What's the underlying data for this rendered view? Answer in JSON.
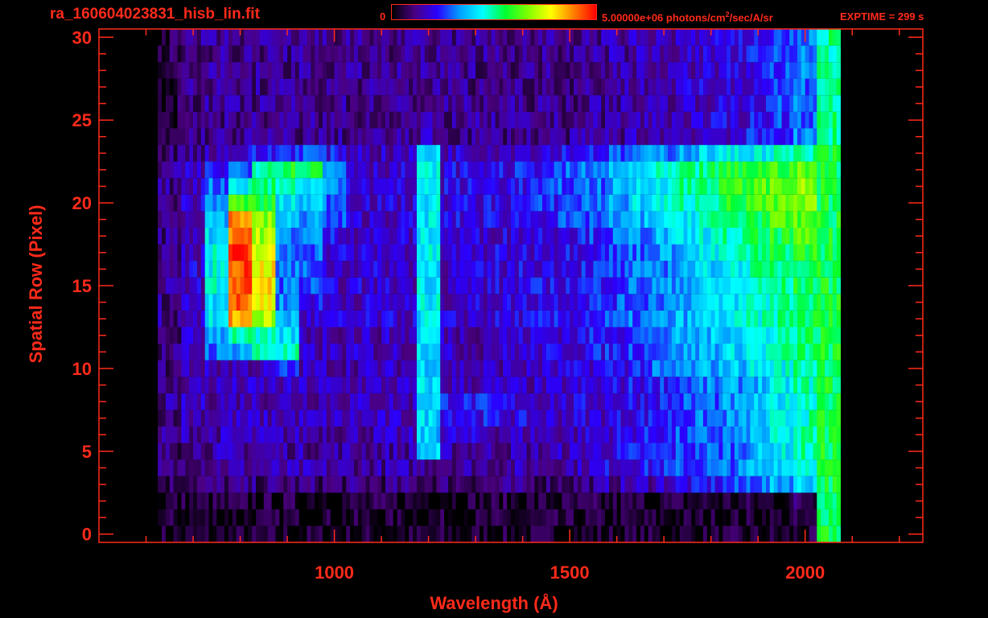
{
  "header": {
    "filename": "ra_160604023831_hisb_lin.fit",
    "colorbar_min": "0",
    "colorbar_max": "5.00000e+06",
    "colorbar_unit_pre": " photons/cm",
    "colorbar_unit_sup": "2",
    "colorbar_unit_post": "/sec/A/sr",
    "exptime": "EXPTIME = 299 s"
  },
  "colors": {
    "axis": "#ff2a1a",
    "background": "#000000",
    "colormap": [
      "#000000",
      "#4a0080",
      "#2a00ff",
      "#00a0ff",
      "#00ffff",
      "#00ff30",
      "#80ff00",
      "#ffff00",
      "#ff8000",
      "#ff0000"
    ]
  },
  "chart_data": {
    "type": "heatmap",
    "title": "ra_160604023831_hisb_lin.fit",
    "xlabel": "Wavelength (Å)",
    "ylabel": "Spatial Row (Pixel)",
    "xlim": [
      500,
      2250
    ],
    "ylim": [
      -0.5,
      30.5
    ],
    "xticks": [
      1000,
      1500,
      2000
    ],
    "yticks": [
      0,
      5,
      10,
      15,
      20,
      25,
      30
    ],
    "colorbar": {
      "min": 0,
      "max": 5000000,
      "unit": "photons/cm^2/sec/A/sr"
    },
    "exptime_s": 299,
    "rows": [
      0,
      1,
      2,
      3,
      4,
      5,
      6,
      7,
      8,
      9,
      10,
      11,
      12,
      13,
      14,
      15,
      16,
      17,
      18,
      19,
      20,
      21,
      22,
      23,
      24,
      25,
      26,
      27,
      28,
      29,
      30
    ],
    "wavelength_bins": [
      650,
      700,
      750,
      800,
      850,
      900,
      950,
      1000,
      1050,
      1100,
      1150,
      1200,
      1250,
      1300,
      1350,
      1400,
      1450,
      1500,
      1550,
      1600,
      1650,
      1700,
      1750,
      1800,
      1850,
      1900,
      1950,
      2000,
      2050
    ],
    "intensity_norm_rows": [
      [
        0.03,
        0.03,
        0.03,
        0.03,
        0.03,
        0.03,
        0.03,
        0.03,
        0.03,
        0.03,
        0.03,
        0.03,
        0.03,
        0.03,
        0.03,
        0.03,
        0.03,
        0.03,
        0.03,
        0.03,
        0.03,
        0.03,
        0.03,
        0.03,
        0.03,
        0.03,
        0.03,
        0.03,
        0.55
      ],
      [
        0.03,
        0.03,
        0.03,
        0.03,
        0.03,
        0.03,
        0.03,
        0.03,
        0.03,
        0.03,
        0.03,
        0.03,
        0.03,
        0.03,
        0.03,
        0.03,
        0.03,
        0.03,
        0.03,
        0.03,
        0.03,
        0.03,
        0.03,
        0.03,
        0.03,
        0.03,
        0.03,
        0.03,
        0.55
      ],
      [
        0.04,
        0.04,
        0.04,
        0.04,
        0.04,
        0.04,
        0.04,
        0.04,
        0.04,
        0.04,
        0.04,
        0.04,
        0.04,
        0.04,
        0.04,
        0.04,
        0.04,
        0.04,
        0.04,
        0.04,
        0.04,
        0.04,
        0.04,
        0.04,
        0.04,
        0.04,
        0.04,
        0.08,
        0.55
      ],
      [
        0.08,
        0.1,
        0.1,
        0.1,
        0.1,
        0.1,
        0.1,
        0.1,
        0.1,
        0.1,
        0.1,
        0.1,
        0.1,
        0.1,
        0.1,
        0.1,
        0.1,
        0.1,
        0.12,
        0.14,
        0.16,
        0.18,
        0.2,
        0.22,
        0.25,
        0.3,
        0.35,
        0.4,
        0.55
      ],
      [
        0.1,
        0.14,
        0.14,
        0.14,
        0.14,
        0.14,
        0.14,
        0.14,
        0.14,
        0.14,
        0.14,
        0.14,
        0.14,
        0.14,
        0.14,
        0.14,
        0.14,
        0.16,
        0.18,
        0.2,
        0.22,
        0.24,
        0.26,
        0.28,
        0.3,
        0.36,
        0.42,
        0.48,
        0.55
      ],
      [
        0.1,
        0.14,
        0.14,
        0.14,
        0.14,
        0.14,
        0.14,
        0.14,
        0.14,
        0.14,
        0.14,
        0.38,
        0.14,
        0.14,
        0.14,
        0.14,
        0.14,
        0.16,
        0.18,
        0.2,
        0.22,
        0.24,
        0.26,
        0.28,
        0.3,
        0.36,
        0.42,
        0.48,
        0.55
      ],
      [
        0.12,
        0.15,
        0.15,
        0.15,
        0.15,
        0.15,
        0.15,
        0.15,
        0.15,
        0.15,
        0.15,
        0.38,
        0.18,
        0.17,
        0.16,
        0.16,
        0.16,
        0.16,
        0.18,
        0.2,
        0.22,
        0.24,
        0.26,
        0.28,
        0.3,
        0.36,
        0.42,
        0.48,
        0.55
      ],
      [
        0.12,
        0.16,
        0.16,
        0.16,
        0.16,
        0.16,
        0.16,
        0.16,
        0.16,
        0.16,
        0.16,
        0.4,
        0.24,
        0.22,
        0.2,
        0.19,
        0.18,
        0.18,
        0.19,
        0.2,
        0.22,
        0.24,
        0.27,
        0.29,
        0.32,
        0.36,
        0.42,
        0.48,
        0.55
      ],
      [
        0.12,
        0.16,
        0.16,
        0.16,
        0.16,
        0.16,
        0.16,
        0.16,
        0.16,
        0.16,
        0.16,
        0.4,
        0.24,
        0.22,
        0.2,
        0.19,
        0.18,
        0.18,
        0.19,
        0.2,
        0.22,
        0.24,
        0.27,
        0.29,
        0.32,
        0.36,
        0.42,
        0.48,
        0.55
      ],
      [
        0.1,
        0.16,
        0.16,
        0.16,
        0.16,
        0.16,
        0.16,
        0.16,
        0.16,
        0.16,
        0.16,
        0.4,
        0.16,
        0.16,
        0.16,
        0.16,
        0.16,
        0.17,
        0.18,
        0.2,
        0.22,
        0.25,
        0.28,
        0.3,
        0.33,
        0.37,
        0.42,
        0.48,
        0.55
      ],
      [
        0.1,
        0.16,
        0.16,
        0.16,
        0.16,
        0.24,
        0.16,
        0.16,
        0.16,
        0.16,
        0.16,
        0.4,
        0.16,
        0.16,
        0.16,
        0.16,
        0.17,
        0.18,
        0.2,
        0.22,
        0.25,
        0.28,
        0.32,
        0.35,
        0.38,
        0.42,
        0.45,
        0.5,
        0.55
      ],
      [
        0.1,
        0.16,
        0.3,
        0.36,
        0.48,
        0.46,
        0.16,
        0.16,
        0.16,
        0.16,
        0.16,
        0.42,
        0.16,
        0.16,
        0.17,
        0.18,
        0.19,
        0.2,
        0.22,
        0.24,
        0.27,
        0.3,
        0.34,
        0.37,
        0.4,
        0.44,
        0.48,
        0.52,
        0.55
      ],
      [
        0.1,
        0.16,
        0.36,
        0.5,
        0.44,
        0.4,
        0.16,
        0.16,
        0.16,
        0.16,
        0.16,
        0.42,
        0.16,
        0.16,
        0.17,
        0.18,
        0.19,
        0.2,
        0.22,
        0.24,
        0.27,
        0.3,
        0.34,
        0.37,
        0.4,
        0.44,
        0.48,
        0.52,
        0.55
      ],
      [
        0.12,
        0.18,
        0.4,
        0.85,
        0.7,
        0.36,
        0.18,
        0.18,
        0.18,
        0.18,
        0.18,
        0.42,
        0.18,
        0.18,
        0.19,
        0.2,
        0.21,
        0.22,
        0.24,
        0.26,
        0.29,
        0.32,
        0.36,
        0.39,
        0.42,
        0.46,
        0.5,
        0.54,
        0.55
      ],
      [
        0.12,
        0.18,
        0.42,
        0.9,
        0.78,
        0.32,
        0.22,
        0.18,
        0.18,
        0.18,
        0.18,
        0.42,
        0.18,
        0.18,
        0.19,
        0.2,
        0.21,
        0.22,
        0.24,
        0.26,
        0.29,
        0.32,
        0.36,
        0.39,
        0.42,
        0.46,
        0.5,
        0.54,
        0.55
      ],
      [
        0.12,
        0.18,
        0.44,
        0.92,
        0.8,
        0.3,
        0.26,
        0.18,
        0.18,
        0.18,
        0.18,
        0.42,
        0.18,
        0.18,
        0.19,
        0.2,
        0.21,
        0.22,
        0.24,
        0.26,
        0.29,
        0.32,
        0.36,
        0.39,
        0.42,
        0.46,
        0.5,
        0.54,
        0.55
      ],
      [
        0.12,
        0.18,
        0.44,
        0.94,
        0.78,
        0.3,
        0.28,
        0.18,
        0.18,
        0.18,
        0.18,
        0.42,
        0.18,
        0.18,
        0.19,
        0.2,
        0.21,
        0.22,
        0.24,
        0.26,
        0.29,
        0.32,
        0.36,
        0.4,
        0.44,
        0.48,
        0.52,
        0.56,
        0.55
      ],
      [
        0.12,
        0.18,
        0.44,
        0.94,
        0.74,
        0.3,
        0.3,
        0.2,
        0.18,
        0.18,
        0.18,
        0.42,
        0.18,
        0.18,
        0.19,
        0.2,
        0.21,
        0.22,
        0.24,
        0.26,
        0.3,
        0.34,
        0.38,
        0.42,
        0.46,
        0.5,
        0.54,
        0.58,
        0.55
      ],
      [
        0.12,
        0.18,
        0.4,
        0.92,
        0.7,
        0.32,
        0.32,
        0.22,
        0.18,
        0.18,
        0.18,
        0.42,
        0.18,
        0.18,
        0.19,
        0.2,
        0.21,
        0.22,
        0.25,
        0.28,
        0.32,
        0.36,
        0.4,
        0.44,
        0.48,
        0.52,
        0.56,
        0.6,
        0.55
      ],
      [
        0.12,
        0.18,
        0.38,
        0.88,
        0.66,
        0.36,
        0.34,
        0.26,
        0.18,
        0.18,
        0.18,
        0.42,
        0.2,
        0.2,
        0.21,
        0.22,
        0.23,
        0.25,
        0.28,
        0.31,
        0.36,
        0.4,
        0.44,
        0.48,
        0.52,
        0.56,
        0.6,
        0.62,
        0.55
      ],
      [
        0.12,
        0.18,
        0.34,
        0.6,
        0.56,
        0.4,
        0.38,
        0.3,
        0.2,
        0.18,
        0.18,
        0.42,
        0.2,
        0.2,
        0.21,
        0.22,
        0.24,
        0.27,
        0.3,
        0.34,
        0.4,
        0.44,
        0.48,
        0.52,
        0.56,
        0.6,
        0.62,
        0.64,
        0.55
      ],
      [
        0.12,
        0.18,
        0.3,
        0.44,
        0.52,
        0.48,
        0.4,
        0.34,
        0.22,
        0.18,
        0.18,
        0.42,
        0.2,
        0.2,
        0.21,
        0.22,
        0.24,
        0.27,
        0.3,
        0.34,
        0.4,
        0.45,
        0.5,
        0.54,
        0.58,
        0.62,
        0.64,
        0.66,
        0.55
      ],
      [
        0.12,
        0.16,
        0.22,
        0.3,
        0.52,
        0.56,
        0.56,
        0.34,
        0.2,
        0.18,
        0.18,
        0.42,
        0.2,
        0.2,
        0.21,
        0.22,
        0.24,
        0.27,
        0.3,
        0.34,
        0.4,
        0.44,
        0.48,
        0.52,
        0.56,
        0.58,
        0.6,
        0.62,
        0.55
      ],
      [
        0.1,
        0.14,
        0.16,
        0.18,
        0.22,
        0.26,
        0.28,
        0.22,
        0.18,
        0.16,
        0.16,
        0.4,
        0.18,
        0.18,
        0.18,
        0.19,
        0.2,
        0.22,
        0.24,
        0.26,
        0.3,
        0.32,
        0.36,
        0.4,
        0.42,
        0.44,
        0.46,
        0.48,
        0.55
      ],
      [
        0.06,
        0.12,
        0.12,
        0.12,
        0.12,
        0.12,
        0.12,
        0.12,
        0.12,
        0.12,
        0.12,
        0.14,
        0.12,
        0.12,
        0.12,
        0.12,
        0.12,
        0.12,
        0.13,
        0.14,
        0.15,
        0.16,
        0.17,
        0.18,
        0.19,
        0.22,
        0.26,
        0.3,
        0.5
      ],
      [
        0.06,
        0.12,
        0.12,
        0.12,
        0.12,
        0.12,
        0.12,
        0.12,
        0.12,
        0.12,
        0.12,
        0.12,
        0.12,
        0.12,
        0.12,
        0.12,
        0.12,
        0.12,
        0.13,
        0.14,
        0.15,
        0.16,
        0.17,
        0.18,
        0.19,
        0.22,
        0.26,
        0.3,
        0.5
      ],
      [
        0.06,
        0.12,
        0.12,
        0.12,
        0.12,
        0.12,
        0.12,
        0.12,
        0.12,
        0.12,
        0.12,
        0.12,
        0.12,
        0.12,
        0.12,
        0.12,
        0.12,
        0.12,
        0.13,
        0.14,
        0.15,
        0.16,
        0.17,
        0.18,
        0.19,
        0.22,
        0.26,
        0.3,
        0.5
      ],
      [
        0.06,
        0.12,
        0.12,
        0.12,
        0.12,
        0.12,
        0.12,
        0.12,
        0.12,
        0.12,
        0.12,
        0.12,
        0.12,
        0.12,
        0.12,
        0.12,
        0.12,
        0.12,
        0.13,
        0.14,
        0.15,
        0.16,
        0.17,
        0.18,
        0.19,
        0.22,
        0.26,
        0.3,
        0.5
      ],
      [
        0.06,
        0.12,
        0.12,
        0.12,
        0.12,
        0.12,
        0.12,
        0.12,
        0.12,
        0.12,
        0.12,
        0.12,
        0.12,
        0.12,
        0.12,
        0.12,
        0.12,
        0.12,
        0.13,
        0.14,
        0.15,
        0.16,
        0.17,
        0.18,
        0.19,
        0.22,
        0.26,
        0.3,
        0.5
      ],
      [
        0.06,
        0.12,
        0.12,
        0.12,
        0.12,
        0.12,
        0.12,
        0.12,
        0.12,
        0.12,
        0.12,
        0.12,
        0.12,
        0.12,
        0.12,
        0.12,
        0.12,
        0.12,
        0.13,
        0.14,
        0.15,
        0.16,
        0.17,
        0.18,
        0.19,
        0.22,
        0.26,
        0.3,
        0.5
      ],
      [
        0.06,
        0.12,
        0.12,
        0.12,
        0.12,
        0.12,
        0.12,
        0.12,
        0.12,
        0.12,
        0.12,
        0.12,
        0.12,
        0.12,
        0.12,
        0.12,
        0.12,
        0.12,
        0.13,
        0.14,
        0.15,
        0.16,
        0.17,
        0.18,
        0.19,
        0.22,
        0.26,
        0.3,
        0.5
      ]
    ]
  }
}
